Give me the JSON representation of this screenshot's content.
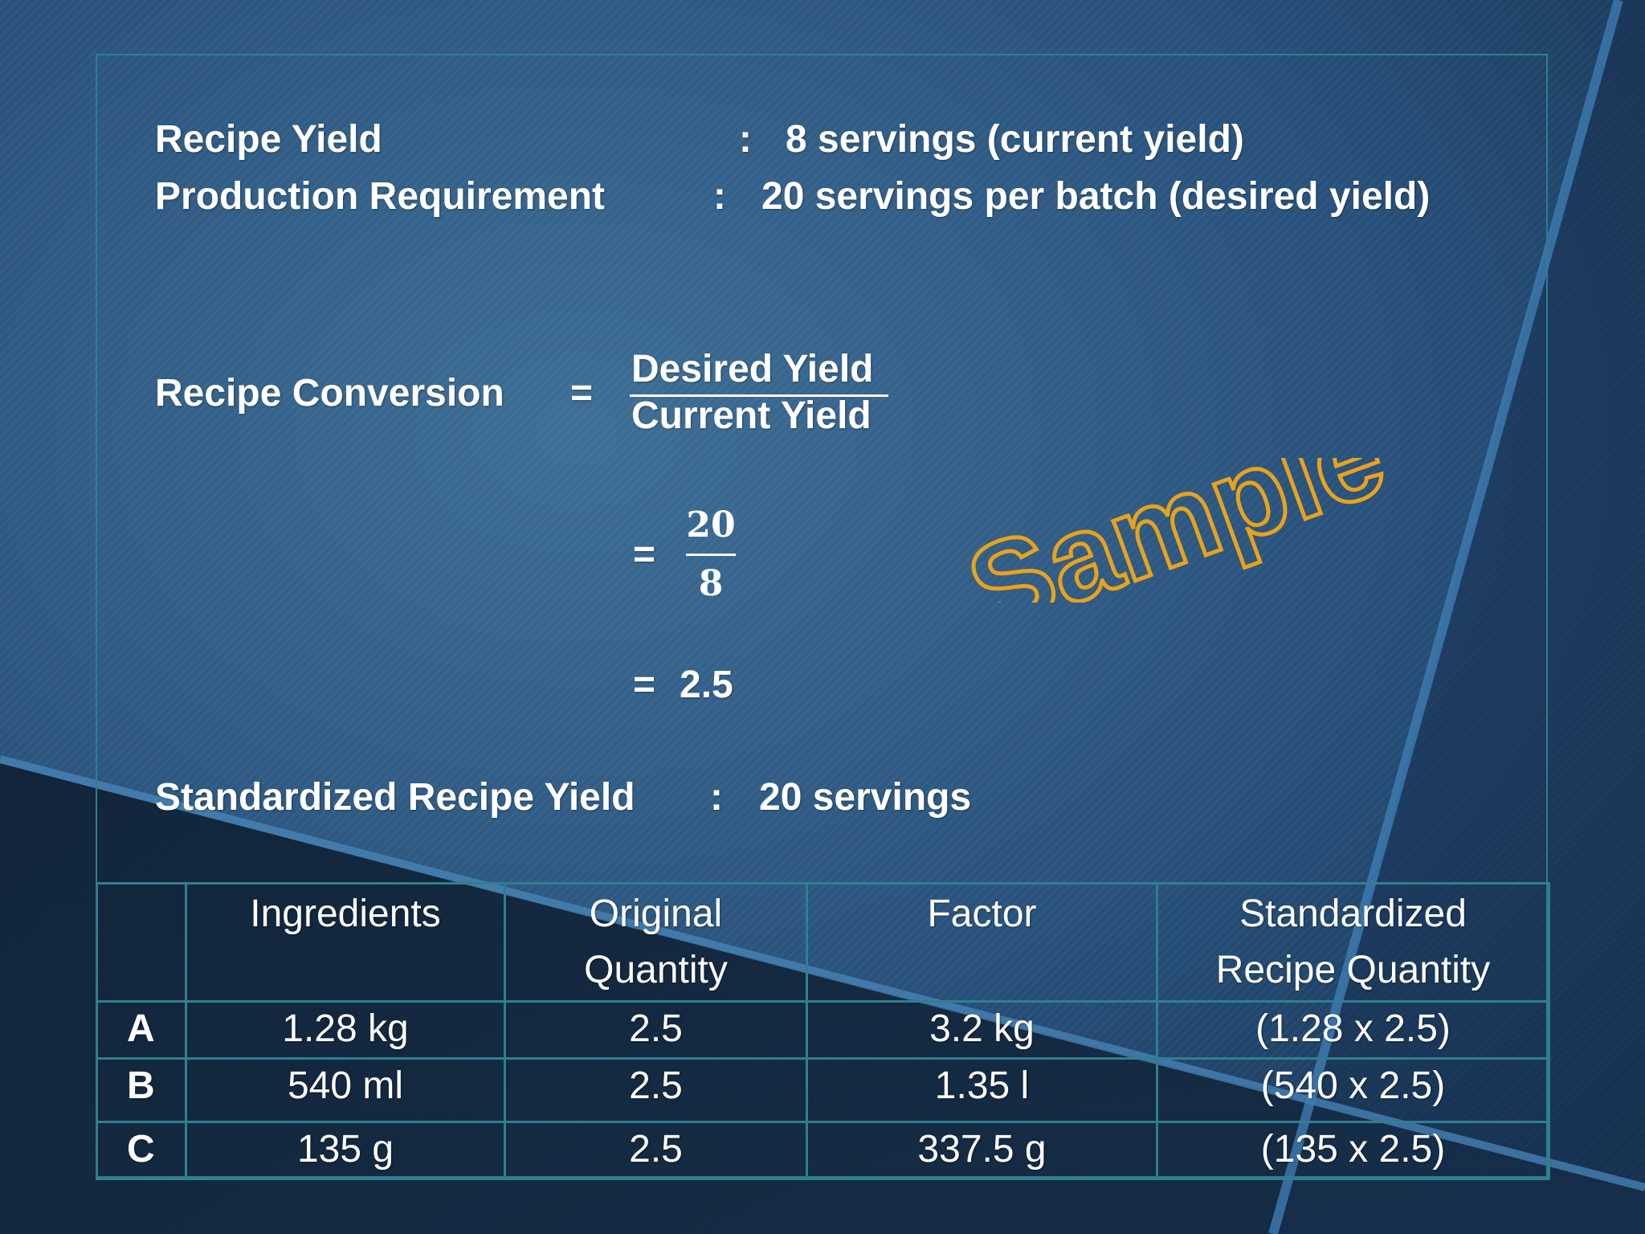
{
  "info": {
    "recipe_yield_label": "Recipe Yield",
    "recipe_yield_sep": ":",
    "recipe_yield_value": "8 servings (current yield)",
    "production_label": "Production Requirement",
    "production_sep": ":",
    "production_value": "20 servings per batch (desired yield)"
  },
  "conversion": {
    "label": "Recipe Conversion",
    "eq1": "=",
    "numerator_text": "Desired Yield",
    "denominator_text": "Current Yield",
    "eq2": "=",
    "numerator_value": "20",
    "denominator_value": "8",
    "eq3": "=",
    "result": "2.5"
  },
  "standardized": {
    "label": "Standardized Recipe Yield",
    "sep": ":",
    "value": "20 servings"
  },
  "watermark": {
    "text": "Sample",
    "stroke_color": "#e8a21c"
  },
  "table": {
    "headers": [
      "",
      "Ingredients",
      "Original Quantity",
      "Factor",
      "Standardized Recipe Quantity"
    ],
    "rows": [
      {
        "key": "A",
        "ingredient": "1.28 kg",
        "original": "2.5",
        "factor": "3.2 kg",
        "standardized": "(1.28 x 2.5)"
      },
      {
        "key": "B",
        "ingredient": "540 ml",
        "original": "2.5",
        "factor": "1.35 l",
        "standardized": "(540 x 2.5)"
      },
      {
        "key": "C",
        "ingredient": "135 g",
        "original": "2.5",
        "factor": "337.5 g",
        "standardized": "(135 x 2.5)"
      }
    ]
  },
  "colors": {
    "background": "#2a5478",
    "border": "#2f7f8e",
    "text": "#ffffff",
    "watermark": "#e8a21c"
  }
}
